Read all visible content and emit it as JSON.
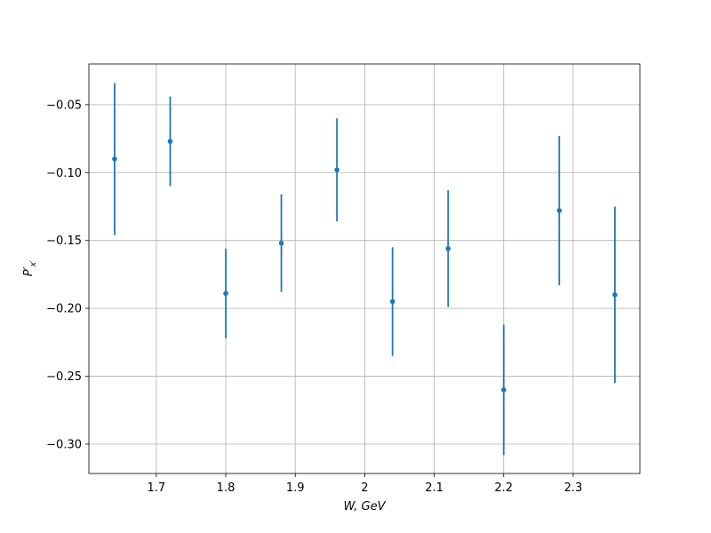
{
  "chart_data": {
    "type": "errorbar",
    "xlabel": "W, GeV",
    "ylabel": {
      "main": "P′",
      "sub": "x′"
    },
    "x": [
      1.64,
      1.72,
      1.8,
      1.88,
      1.96,
      2.04,
      2.12,
      2.2,
      2.28,
      2.36
    ],
    "values": [
      -0.09,
      -0.077,
      -0.189,
      -0.152,
      -0.098,
      -0.195,
      -0.156,
      -0.26,
      -0.128,
      -0.19
    ],
    "errors": [
      0.056,
      0.033,
      0.033,
      0.036,
      0.038,
      0.04,
      0.043,
      0.048,
      0.055,
      0.065
    ],
    "color": "#1f77b4",
    "xlim": [
      1.603,
      2.396
    ],
    "ylim": [
      -0.3216,
      -0.02
    ],
    "xticks": [
      1.7,
      1.8,
      1.9,
      2.0,
      2.1,
      2.2,
      2.3
    ],
    "yticks": [
      {
        "value": -0.05,
        "label": "−0.05"
      },
      {
        "value": -0.1,
        "label": "−0.10"
      },
      {
        "value": -0.15,
        "label": "−0.15"
      },
      {
        "value": -0.2,
        "label": "−0.20"
      },
      {
        "value": -0.25,
        "label": "−0.25"
      },
      {
        "value": -0.3,
        "label": "−0.30"
      }
    ],
    "grid": true
  }
}
